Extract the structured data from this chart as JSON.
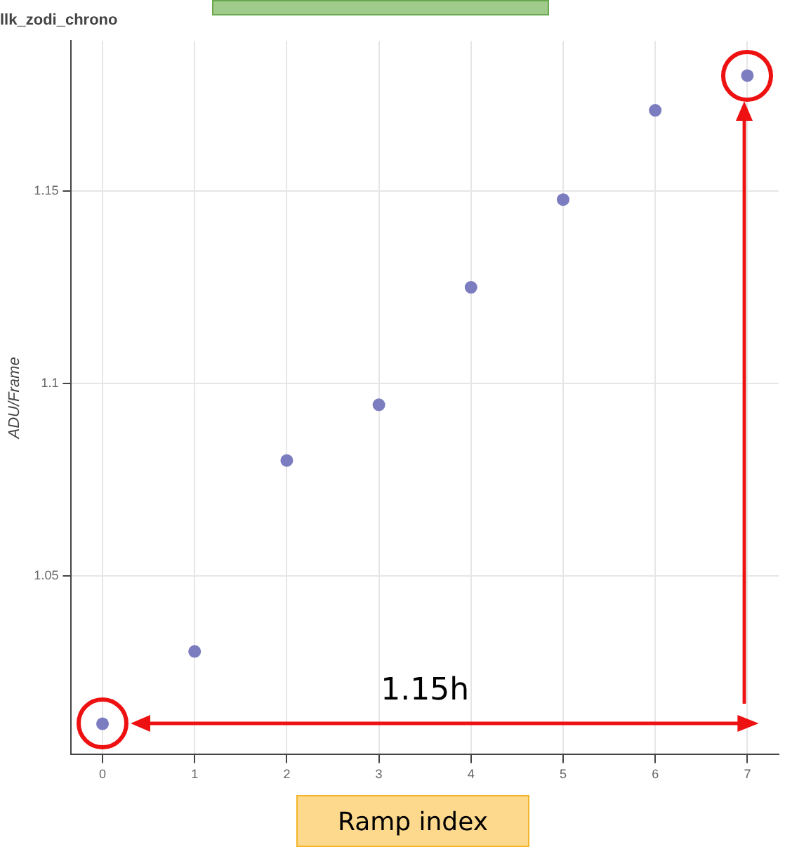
{
  "chart_data": {
    "type": "scatter",
    "title": "llk_zodi_chrono",
    "xlabel": "Ramp index",
    "ylabel": "ADU/Frame",
    "x": [
      0,
      1,
      2,
      3,
      4,
      5,
      6,
      7
    ],
    "series": [
      {
        "color": "#7b7dc0",
        "values": [
          1.0116,
          1.0304,
          1.08,
          1.0945,
          1.125,
          1.1478,
          1.171,
          1.18
        ]
      }
    ],
    "xlim": [
      -0.34,
      7.34
    ],
    "xticks": [
      0,
      1,
      2,
      3,
      4,
      5,
      6,
      7
    ],
    "ylim": [
      1.0036,
      1.189
    ],
    "yticks": [
      1.05,
      1.1,
      1.15
    ],
    "grid": true,
    "marker": "circle",
    "legend": false,
    "annotations": [
      "1.15h"
    ]
  }
}
